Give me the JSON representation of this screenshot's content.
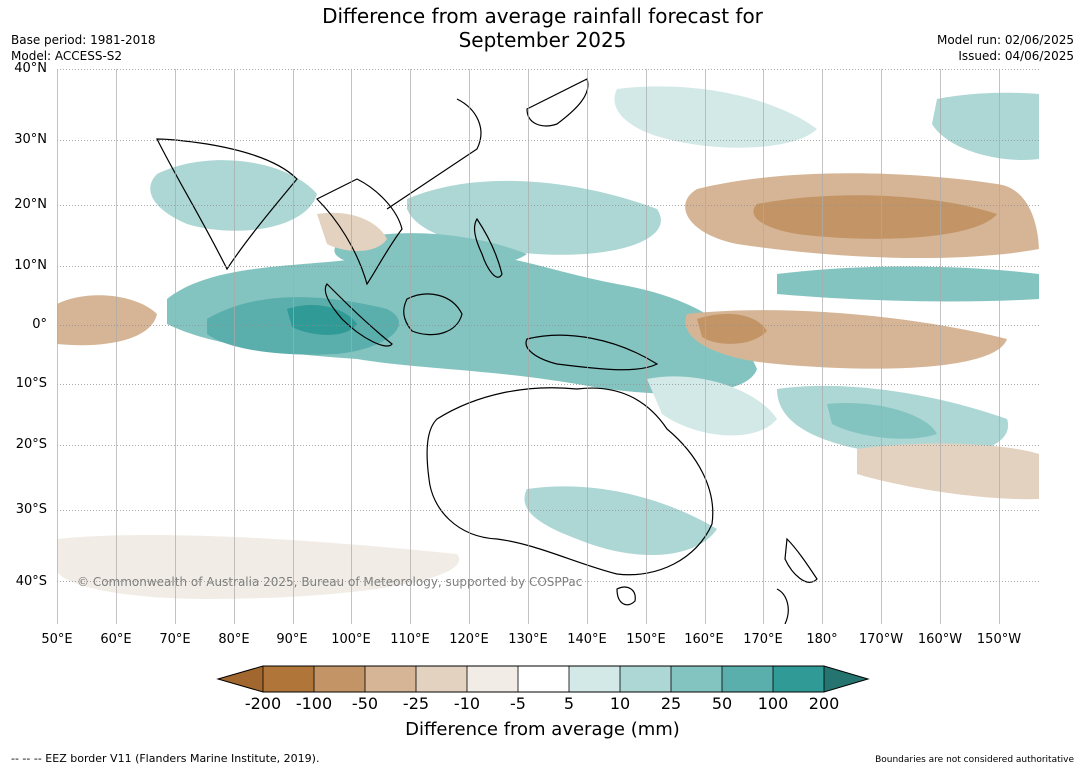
{
  "header": {
    "title_line1": "Difference from average rainfall forecast for",
    "title_line2": "September 2025",
    "base_period": "Base period: 1981-2018",
    "model": "Model: ACCESS-S2",
    "model_run": "Model run: 02/06/2025",
    "issued": "Issued: 04/06/2025"
  },
  "map": {
    "lat_ticks": [
      "40°N",
      "30°N",
      "20°N",
      "10°N",
      "0°",
      "10°S",
      "20°S",
      "30°S",
      "40°S"
    ],
    "lon_ticks": [
      "50°E",
      "60°E",
      "70°E",
      "80°E",
      "90°E",
      "100°E",
      "110°E",
      "120°E",
      "130°E",
      "140°E",
      "150°E",
      "160°E",
      "170°E",
      "180°",
      "170°W",
      "160°W",
      "150°W"
    ],
    "copyright": "© Commonwealth of Australia 2025, Bureau of Meteorology, supported by COSPPac"
  },
  "legend": {
    "labels": [
      "-200",
      "-100",
      "-50",
      "-25",
      "-10",
      "-5",
      "5",
      "10",
      "25",
      "50",
      "100",
      "200"
    ],
    "colors": [
      "#a1672e",
      "#b07539",
      "#c39566",
      "#d5b595",
      "#e4d2c0",
      "#f1ede6",
      "#ffffff",
      "#d3e9e7",
      "#acd7d4",
      "#84c4c0",
      "#5aaeab",
      "#2f9a96",
      "#25746f"
    ],
    "title": "Difference from average (mm)"
  },
  "footer": {
    "eez": "--  --  -- EEZ border V11 (Flanders Marine Institute, 2019).",
    "disclaimer": "Boundaries are not considered authoritative"
  }
}
